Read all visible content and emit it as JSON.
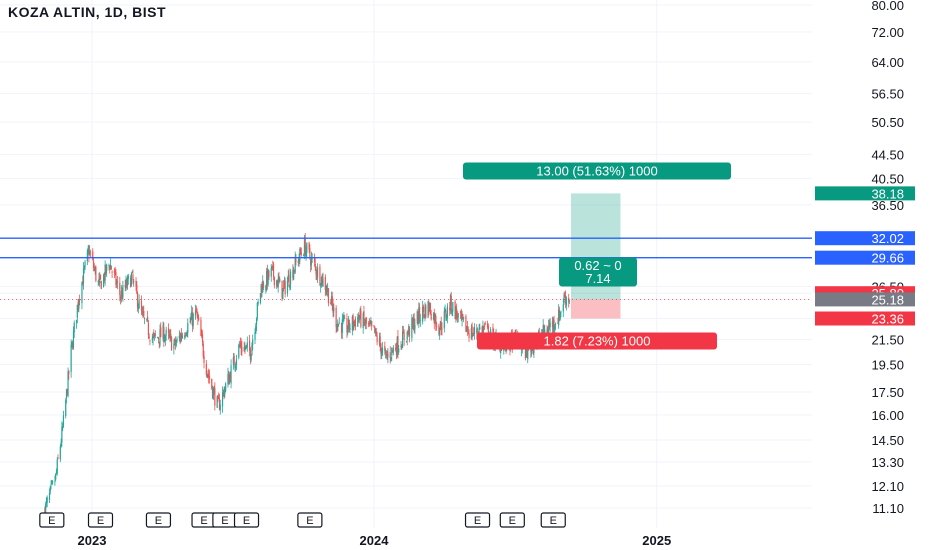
{
  "header": {
    "title": "KOZA ALTIN, 1D, BIST"
  },
  "colors": {
    "up": "#26a69a",
    "down": "#ef5350",
    "line": "#2962ff",
    "profit": "#089981",
    "loss": "#f23645",
    "current": "#787b86",
    "grid": "#f0f3fa",
    "text": "#131722"
  },
  "chart_data": {
    "type": "candlestick",
    "scale": "log",
    "y_ticks": [
      "80.00",
      "72.00",
      "64.00",
      "56.50",
      "50.50",
      "44.50",
      "40.50",
      "36.50",
      "32.02",
      "29.66",
      "26.50",
      "25.80",
      "25.18",
      "23.36",
      "21.50",
      "19.50",
      "17.50",
      "16.00",
      "14.50",
      "13.30",
      "12.10",
      "11.10"
    ],
    "x_ticks": [
      "2023",
      "2024",
      "2025"
    ],
    "price_path": [
      [
        "2022-11-01",
        11.0
      ],
      [
        "2022-11-15",
        12.5
      ],
      [
        "2022-11-25",
        15.5
      ],
      [
        "2022-12-05",
        20.5
      ],
      [
        "2022-12-15",
        25.5
      ],
      [
        "2022-12-28",
        30.5
      ],
      [
        "2023-01-10",
        26.5
      ],
      [
        "2023-01-24",
        29.0
      ],
      [
        "2023-02-07",
        25.5
      ],
      [
        "2023-02-21",
        27.5
      ],
      [
        "2023-03-07",
        23.5
      ],
      [
        "2023-03-21",
        21.5
      ],
      [
        "2023-04-04",
        22.0
      ],
      [
        "2023-04-18",
        21.0
      ],
      [
        "2023-05-02",
        22.5
      ],
      [
        "2023-05-16",
        23.8
      ],
      [
        "2023-05-30",
        19.0
      ],
      [
        "2023-06-13",
        16.5
      ],
      [
        "2023-06-27",
        18.5
      ],
      [
        "2023-07-11",
        21.0
      ],
      [
        "2023-07-25",
        20.5
      ],
      [
        "2023-08-08",
        26.5
      ],
      [
        "2023-08-22",
        28.0
      ],
      [
        "2023-09-05",
        26.0
      ],
      [
        "2023-09-19",
        28.5
      ],
      [
        "2023-10-03",
        31.0
      ],
      [
        "2023-10-17",
        28.5
      ],
      [
        "2023-10-31",
        26.5
      ],
      [
        "2023-11-14",
        23.0
      ],
      [
        "2023-11-28",
        22.5
      ],
      [
        "2023-12-12",
        23.5
      ],
      [
        "2024-01-02",
        22.0
      ],
      [
        "2024-01-16",
        20.0
      ],
      [
        "2024-01-30",
        21.0
      ],
      [
        "2024-02-13",
        22.0
      ],
      [
        "2024-02-27",
        23.5
      ],
      [
        "2024-03-12",
        24.5
      ],
      [
        "2024-03-26",
        22.5
      ],
      [
        "2024-04-09",
        24.8
      ],
      [
        "2024-04-23",
        23.0
      ],
      [
        "2024-05-07",
        22.0
      ],
      [
        "2024-05-21",
        22.5
      ],
      [
        "2024-06-04",
        21.5
      ],
      [
        "2024-06-18",
        21.0
      ],
      [
        "2024-07-02",
        21.5
      ],
      [
        "2024-07-16",
        20.5
      ],
      [
        "2024-07-30",
        21.5
      ],
      [
        "2024-08-13",
        22.5
      ],
      [
        "2024-08-27",
        23.5
      ],
      [
        "2024-09-04",
        25.5
      ],
      [
        "2024-09-10",
        25.18
      ]
    ],
    "horizontal_lines": [
      32.02,
      29.66
    ],
    "price_labels": [
      {
        "value": 38.18,
        "text": "38.18",
        "kind": "profit"
      },
      {
        "value": 32.02,
        "text": "32.02",
        "kind": "line"
      },
      {
        "value": 29.66,
        "text": "29.66",
        "kind": "line"
      },
      {
        "value": 25.8,
        "text": "25.80",
        "kind": "loss"
      },
      {
        "value": 25.18,
        "text": "25.18",
        "kind": "current"
      },
      {
        "value": 23.36,
        "text": "23.36",
        "kind": "loss"
      }
    ],
    "position": {
      "entry": 25.18,
      "target": 38.18,
      "stop": 23.36,
      "start": "2024-09-12",
      "end": "2024-11-15",
      "target_text": "13.00 (51.63%) 1000",
      "stop_text": "1.82 (7.23%) 1000",
      "pnl_text": "0.62 ~ 0",
      "ratio_text": "7.14"
    },
    "events": [
      "2022-11-10",
      "2023-01-12",
      "2023-03-28",
      "2023-05-26",
      "2023-06-22",
      "2023-07-20",
      "2023-10-10",
      "2024-05-14",
      "2024-06-28",
      "2024-08-20"
    ],
    "event_label": "E"
  }
}
